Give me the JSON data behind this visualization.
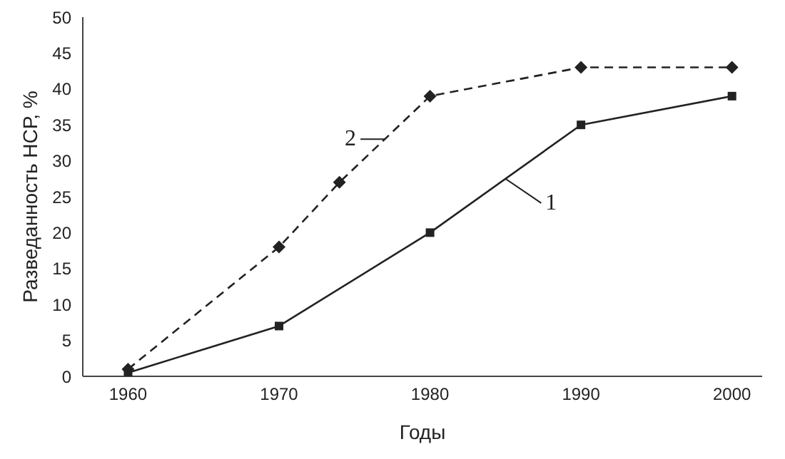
{
  "chart_data": {
    "type": "line",
    "xlabel": "Годы",
    "ylabel": "Разведанность НСР, %",
    "xlim": [
      1957,
      2002
    ],
    "xticks": [
      1960,
      1970,
      1980,
      1990,
      2000
    ],
    "ylim": [
      0,
      50
    ],
    "yticks": [
      0,
      5,
      10,
      15,
      20,
      25,
      30,
      35,
      40,
      45,
      50
    ],
    "grid": false,
    "legend": false,
    "series": [
      {
        "color": "#222222",
        "marker": "square",
        "line_style": "solid",
        "x": [
          1960,
          1970,
          1980,
          1990,
          2000
        ],
        "values": [
          0.5,
          7,
          20,
          35,
          39
        ]
      },
      {
        "color": "#222222",
        "marker": "diamond",
        "line_style": "dashed",
        "x": [
          1960,
          1970,
          1974,
          1980,
          1990,
          2000
        ],
        "values": [
          1,
          18,
          27,
          39,
          43,
          43
        ]
      }
    ],
    "annotations": [
      {
        "text": "1",
        "x": 1985,
        "y": 27.5
      },
      {
        "text": "2",
        "x": 1977,
        "y": 33
      }
    ]
  }
}
